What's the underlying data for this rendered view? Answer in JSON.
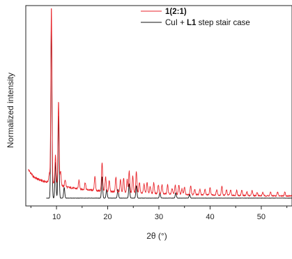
{
  "chart_data": {
    "type": "line",
    "xlabel": "2θ (°)",
    "ylabel": "Normalized intensity",
    "xlim": [
      4,
      56
    ],
    "ylim": [
      0,
      1.05
    ],
    "x_ticks": [
      10,
      20,
      30,
      40,
      50
    ],
    "y_ticks": [],
    "grid": false,
    "legend_position": "top-right",
    "colors": {
      "series_red": "#e8262c",
      "series_black": "#111111"
    },
    "series": [
      {
        "name": "1(2:1)",
        "legend_parts": [
          {
            "text": "1(2:1)",
            "bold": true
          }
        ],
        "color": "#e8262c",
        "baseline": [
          [
            4.5,
            0.16
          ],
          [
            5.5,
            0.12
          ],
          [
            6.5,
            0.105
          ],
          [
            7.5,
            0.095
          ],
          [
            8.5,
            0.09
          ],
          [
            10,
            0.078
          ],
          [
            12,
            0.062
          ],
          [
            15,
            0.05
          ],
          [
            20,
            0.038
          ],
          [
            25,
            0.032
          ],
          [
            30,
            0.026
          ],
          [
            35,
            0.022
          ],
          [
            40,
            0.019
          ],
          [
            45,
            0.016
          ],
          [
            50,
            0.014
          ],
          [
            56,
            0.013
          ]
        ],
        "peaks": [
          [
            8.6,
            0.05
          ],
          [
            9.0,
            0.99
          ],
          [
            9.8,
            0.16
          ],
          [
            10.4,
            0.47
          ],
          [
            10.8,
            0.08
          ],
          [
            11.7,
            0.04
          ],
          [
            14.4,
            0.05
          ],
          [
            15.6,
            0.04
          ],
          [
            17.5,
            0.08
          ],
          [
            18.9,
            0.16
          ],
          [
            19.6,
            0.08
          ],
          [
            20.3,
            0.06
          ],
          [
            21.6,
            0.08
          ],
          [
            22.5,
            0.07
          ],
          [
            23.1,
            0.08
          ],
          [
            23.8,
            0.07
          ],
          [
            24.2,
            0.12
          ],
          [
            24.9,
            0.09
          ],
          [
            25.6,
            0.12
          ],
          [
            26.2,
            0.06
          ],
          [
            27.1,
            0.05
          ],
          [
            27.7,
            0.06
          ],
          [
            28.3,
            0.04
          ],
          [
            29.0,
            0.06
          ],
          [
            29.9,
            0.05
          ],
          [
            30.6,
            0.05
          ],
          [
            31.7,
            0.05
          ],
          [
            32.6,
            0.03
          ],
          [
            33.2,
            0.05
          ],
          [
            33.9,
            0.05
          ],
          [
            34.5,
            0.03
          ],
          [
            35.0,
            0.04
          ],
          [
            36.2,
            0.05
          ],
          [
            37.0,
            0.03
          ],
          [
            38.0,
            0.03
          ],
          [
            39.0,
            0.03
          ],
          [
            40.0,
            0.04
          ],
          [
            41.3,
            0.03
          ],
          [
            42.3,
            0.05
          ],
          [
            43.2,
            0.03
          ],
          [
            44.0,
            0.03
          ],
          [
            45.2,
            0.03
          ],
          [
            46.2,
            0.03
          ],
          [
            47.2,
            0.02
          ],
          [
            48.2,
            0.03
          ],
          [
            49.2,
            0.02
          ],
          [
            50.3,
            0.02
          ],
          [
            51.8,
            0.02
          ],
          [
            53.2,
            0.02
          ],
          [
            54.6,
            0.02
          ]
        ]
      },
      {
        "name": "CuI + L1 step stair case",
        "legend_parts": [
          {
            "text": "CuI + ",
            "bold": false
          },
          {
            "text": "L1",
            "bold": true
          },
          {
            "text": " step stair case",
            "bold": false
          }
        ],
        "color": "#111111",
        "baseline": [
          [
            8.0,
            0.0
          ],
          [
            56,
            0.0
          ]
        ],
        "peaks": [
          [
            9.0,
            1.0
          ],
          [
            9.8,
            0.2
          ],
          [
            10.4,
            0.46
          ],
          [
            11.5,
            0.06
          ],
          [
            18.9,
            0.12
          ],
          [
            19.8,
            0.05
          ],
          [
            22.0,
            0.05
          ],
          [
            24.2,
            0.08
          ],
          [
            25.6,
            0.07
          ],
          [
            30.2,
            0.03
          ],
          [
            33.3,
            0.03
          ],
          [
            36.0,
            0.02
          ]
        ]
      }
    ]
  }
}
